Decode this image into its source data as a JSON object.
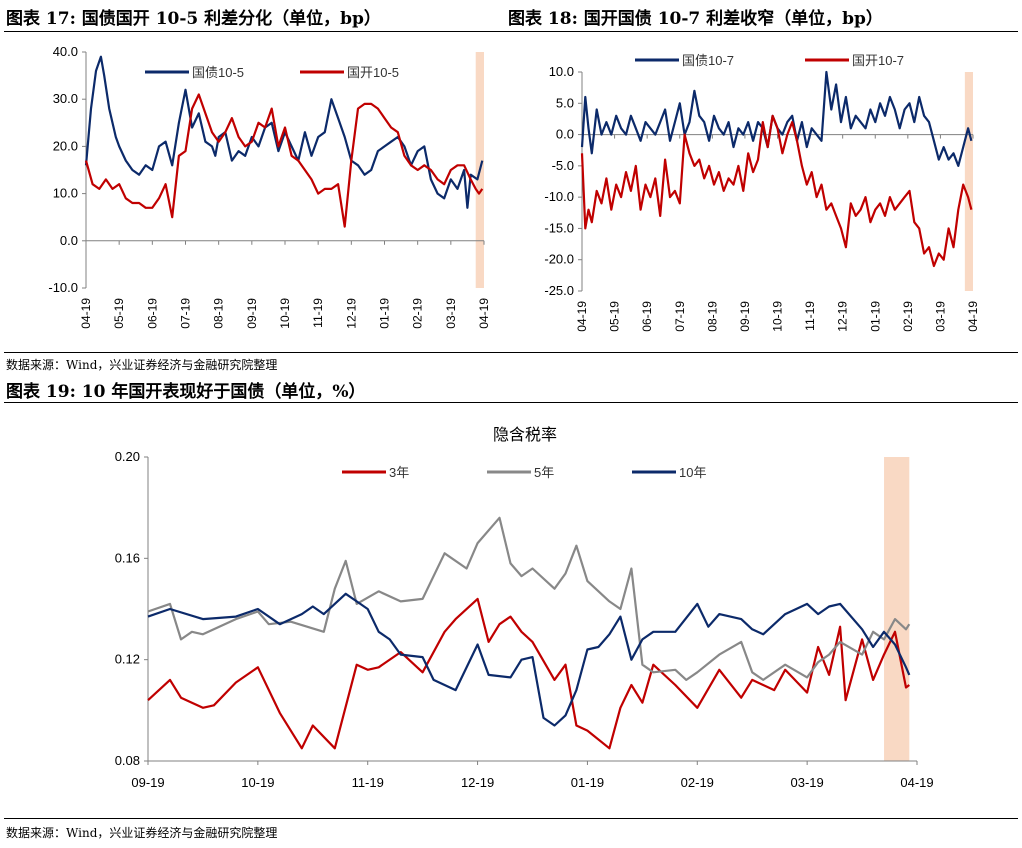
{
  "header_left": "图表 17:  国债国开 10-5 利差分化（单位，bp）",
  "header_right": "图表 18:  国开国债 10-7 利差收窄（单位，bp）",
  "header_bottom": "图表 19:  10 年国开表现好于国债（单位，%）",
  "source_top": "数据来源：Wind，兴业证券经济与金融研究院整理",
  "source_bottom": "数据来源：Wind，兴业证券经济与金融研究院整理",
  "colors": {
    "navy": "#0c2a6a",
    "red": "#c00000",
    "gray": "#888888",
    "highlight": "#f9d9c4"
  },
  "chart_data": [
    {
      "type": "line",
      "title": "",
      "xticks": [
        "04-19",
        "05-19",
        "06-19",
        "07-19",
        "08-19",
        "09-19",
        "10-19",
        "11-19",
        "12-19",
        "01-19",
        "02-19",
        "03-19",
        "04-19"
      ],
      "ylim": [
        -10,
        40
      ],
      "yticks": [
        "-10.0",
        "0.0",
        "10.0",
        "20.0",
        "30.0",
        "40.0"
      ],
      "yticks_values": [
        -10,
        0,
        10,
        20,
        30,
        40
      ],
      "legend": "top",
      "highlight_range": [
        11.75,
        12.0
      ],
      "series": [
        {
          "name": "国债10-5",
          "color": "#0c2a6a",
          "x": [
            0,
            0.15,
            0.3,
            0.45,
            0.55,
            0.7,
            0.9,
            1.0,
            1.2,
            1.4,
            1.6,
            1.8,
            2.0,
            2.2,
            2.4,
            2.6,
            2.8,
            3.0,
            3.2,
            3.4,
            3.6,
            3.8,
            3.9,
            4.0,
            4.2,
            4.4,
            4.6,
            4.8,
            5.0,
            5.2,
            5.4,
            5.6,
            5.8,
            6.0,
            6.2,
            6.4,
            6.6,
            6.8,
            7.0,
            7.2,
            7.4,
            7.6,
            7.8,
            8.0,
            8.2,
            8.4,
            8.6,
            8.8,
            9.0,
            9.2,
            9.4,
            9.6,
            9.8,
            10.0,
            10.2,
            10.4,
            10.6,
            10.8,
            11.0,
            11.2,
            11.4,
            11.5,
            11.6,
            11.8,
            11.95
          ],
          "y": [
            16,
            28,
            36,
            39,
            35,
            28,
            22,
            20,
            17,
            15,
            14,
            16,
            15,
            20,
            21,
            16,
            25,
            32,
            24,
            27,
            21,
            20,
            18,
            22,
            23,
            17,
            19,
            18,
            22,
            20,
            24,
            25,
            19,
            23,
            20,
            17,
            23,
            18,
            22,
            23,
            30,
            26,
            22,
            17,
            16,
            14,
            15,
            19,
            20,
            21,
            22,
            20,
            16,
            19,
            20,
            13,
            10,
            9,
            13,
            11,
            15,
            7,
            14,
            13,
            17
          ]
        },
        {
          "name": "国开10-5",
          "color": "#c00000",
          "x": [
            0,
            0.2,
            0.4,
            0.6,
            0.8,
            1.0,
            1.2,
            1.4,
            1.6,
            1.8,
            2.0,
            2.2,
            2.4,
            2.6,
            2.8,
            3.0,
            3.2,
            3.4,
            3.6,
            3.8,
            4.0,
            4.2,
            4.4,
            4.6,
            4.8,
            5.0,
            5.2,
            5.4,
            5.6,
            5.8,
            6.0,
            6.2,
            6.4,
            6.6,
            6.8,
            7.0,
            7.2,
            7.4,
            7.6,
            7.8,
            8.0,
            8.2,
            8.4,
            8.6,
            8.8,
            9.0,
            9.2,
            9.4,
            9.6,
            9.8,
            10.0,
            10.2,
            10.4,
            10.6,
            10.8,
            11.0,
            11.2,
            11.4,
            11.6,
            11.75,
            11.85,
            11.95
          ],
          "y": [
            17,
            12,
            11,
            13,
            11,
            12,
            9,
            8,
            8,
            7,
            7,
            9,
            12,
            5,
            18,
            19,
            28,
            31,
            27,
            23,
            21,
            23,
            26,
            22,
            20,
            21,
            25,
            24,
            28,
            20,
            24,
            18,
            17,
            15,
            13,
            10,
            11,
            11,
            12,
            3,
            17,
            28,
            29,
            29,
            28,
            26,
            24,
            23,
            18,
            16,
            15,
            16,
            15,
            13,
            12,
            15,
            16,
            16,
            13,
            11,
            10,
            11
          ]
        }
      ]
    },
    {
      "type": "line",
      "title": "",
      "xticks": [
        "04-19",
        "05-19",
        "06-19",
        "07-19",
        "08-19",
        "09-19",
        "10-19",
        "11-19",
        "12-19",
        "01-19",
        "02-19",
        "03-19",
        "04-19"
      ],
      "ylim": [
        -25,
        10
      ],
      "yticks": [
        "-25.0",
        "-20.0",
        "-15.0",
        "-10.0",
        "-5.0",
        "0.0",
        "5.0",
        "10.0"
      ],
      "yticks_values": [
        -25,
        -20,
        -15,
        -10,
        -5,
        0,
        5,
        10
      ],
      "legend": "top",
      "highlight_range": [
        11.75,
        12.0
      ],
      "series": [
        {
          "name": "国债10-7",
          "color": "#0c2a6a",
          "x": [
            0,
            0.1,
            0.2,
            0.3,
            0.45,
            0.6,
            0.75,
            0.9,
            1.05,
            1.2,
            1.35,
            1.5,
            1.65,
            1.8,
            1.95,
            2.1,
            2.25,
            2.4,
            2.55,
            2.7,
            2.85,
            3.0,
            3.15,
            3.3,
            3.45,
            3.6,
            3.75,
            3.9,
            4.05,
            4.2,
            4.35,
            4.5,
            4.65,
            4.8,
            4.95,
            5.1,
            5.25,
            5.4,
            5.55,
            5.7,
            5.85,
            6.0,
            6.15,
            6.3,
            6.45,
            6.6,
            6.75,
            6.9,
            7.05,
            7.2,
            7.35,
            7.5,
            7.65,
            7.8,
            7.95,
            8.1,
            8.25,
            8.4,
            8.55,
            8.7,
            8.85,
            9.0,
            9.15,
            9.3,
            9.45,
            9.6,
            9.75,
            9.9,
            10.05,
            10.2,
            10.35,
            10.5,
            10.65,
            10.8,
            10.95,
            11.1,
            11.25,
            11.4,
            11.55,
            11.7,
            11.85,
            11.95
          ],
          "y": [
            -2,
            6,
            1,
            -3,
            4,
            0,
            2,
            0,
            3,
            1,
            0,
            3,
            1,
            -1,
            2,
            1,
            0,
            2,
            4,
            -1,
            2,
            5,
            0,
            2,
            7,
            3,
            2,
            -1,
            3,
            1,
            0,
            2,
            -2,
            1,
            0,
            2,
            -1,
            2,
            1,
            -2,
            3,
            1,
            0,
            2,
            3,
            -1,
            2,
            -2,
            1,
            0,
            -1,
            10,
            4,
            8,
            2,
            6,
            1,
            3,
            2,
            1,
            4,
            2,
            5,
            3,
            6,
            4,
            1,
            4,
            5,
            2,
            6,
            3,
            2,
            -1,
            -4,
            -2,
            -4,
            -3,
            -5,
            -2,
            1,
            -1
          ]
        },
        {
          "name": "国开10-7",
          "color": "#c00000",
          "x": [
            0,
            0.1,
            0.2,
            0.3,
            0.45,
            0.6,
            0.75,
            0.9,
            1.05,
            1.2,
            1.35,
            1.5,
            1.65,
            1.8,
            1.95,
            2.1,
            2.25,
            2.4,
            2.55,
            2.7,
            2.85,
            3.0,
            3.15,
            3.3,
            3.45,
            3.6,
            3.75,
            3.9,
            4.05,
            4.2,
            4.35,
            4.5,
            4.65,
            4.8,
            4.95,
            5.1,
            5.25,
            5.4,
            5.55,
            5.7,
            5.85,
            6.0,
            6.15,
            6.3,
            6.45,
            6.6,
            6.75,
            6.9,
            7.05,
            7.2,
            7.35,
            7.5,
            7.65,
            7.8,
            7.95,
            8.1,
            8.25,
            8.4,
            8.55,
            8.7,
            8.85,
            9.0,
            9.15,
            9.3,
            9.45,
            9.6,
            9.75,
            9.9,
            10.05,
            10.2,
            10.35,
            10.5,
            10.65,
            10.8,
            10.95,
            11.1,
            11.25,
            11.4,
            11.55,
            11.7,
            11.85,
            11.95
          ],
          "y": [
            -3,
            -15,
            -12,
            -14,
            -9,
            -11,
            -7,
            -12,
            -8,
            -10,
            -6,
            -9,
            -5,
            -12,
            -8,
            -10,
            -7,
            -13,
            -4,
            -10,
            -9,
            -11,
            0,
            -3,
            -5,
            -4,
            -7,
            -5,
            -8,
            -6,
            -9,
            -7,
            -8,
            -5,
            -9,
            -3,
            -6,
            -4,
            2,
            -2,
            3,
            1,
            -3,
            0,
            2,
            -1,
            -5,
            -8,
            -6,
            -10,
            -8,
            -12,
            -11,
            -13,
            -15,
            -18,
            -11,
            -13,
            -12,
            -10,
            -14,
            -12,
            -11,
            -13,
            -10,
            -12,
            -11,
            -10,
            -9,
            -14,
            -15,
            -19,
            -18,
            -21,
            -19,
            -20,
            -15,
            -18,
            -12,
            -8,
            -10,
            -12
          ]
        }
      ]
    },
    {
      "type": "line",
      "title": "隐含税率",
      "xticks": [
        "09-19",
        "10-19",
        "11-19",
        "12-19",
        "01-19",
        "02-19",
        "03-19",
        "04-19"
      ],
      "ylim": [
        0.08,
        0.2
      ],
      "yticks": [
        "0.08",
        "0.12",
        "0.16",
        "0.20"
      ],
      "yticks_values": [
        0.08,
        0.12,
        0.16,
        0.2
      ],
      "legend": "top",
      "highlight_range": [
        6.7,
        6.93
      ],
      "series": [
        {
          "name": "3年",
          "color": "#c00000",
          "x": [
            0,
            0.1,
            0.2,
            0.3,
            0.4,
            0.5,
            0.6,
            0.8,
            1.0,
            1.2,
            1.4,
            1.5,
            1.7,
            1.9,
            2.0,
            2.1,
            2.3,
            2.5,
            2.7,
            2.8,
            3.0,
            3.1,
            3.2,
            3.3,
            3.4,
            3.5,
            3.7,
            3.8,
            3.9,
            4.0,
            4.2,
            4.3,
            4.4,
            4.5,
            4.6,
            4.8,
            5.0,
            5.2,
            5.4,
            5.5,
            5.7,
            5.8,
            6.0,
            6.1,
            6.2,
            6.3,
            6.35,
            6.5,
            6.6,
            6.7,
            6.8,
            6.9,
            6.93
          ],
          "y": [
            0.104,
            0.108,
            0.112,
            0.105,
            0.103,
            0.101,
            0.102,
            0.111,
            0.117,
            0.099,
            0.085,
            0.094,
            0.085,
            0.118,
            0.116,
            0.117,
            0.123,
            0.115,
            0.131,
            0.136,
            0.144,
            0.127,
            0.134,
            0.137,
            0.131,
            0.127,
            0.112,
            0.118,
            0.094,
            0.092,
            0.085,
            0.101,
            0.11,
            0.103,
            0.118,
            0.11,
            0.101,
            0.116,
            0.105,
            0.112,
            0.108,
            0.116,
            0.107,
            0.125,
            0.114,
            0.133,
            0.104,
            0.128,
            0.112,
            0.122,
            0.131,
            0.109,
            0.11
          ]
        },
        {
          "name": "5年",
          "color": "#888888",
          "x": [
            0,
            0.2,
            0.3,
            0.4,
            0.5,
            0.8,
            1.0,
            1.1,
            1.3,
            1.6,
            1.7,
            1.8,
            1.9,
            2.1,
            2.3,
            2.5,
            2.7,
            2.9,
            3.0,
            3.2,
            3.3,
            3.4,
            3.5,
            3.7,
            3.8,
            3.9,
            4.0,
            4.2,
            4.3,
            4.4,
            4.5,
            4.6,
            4.8,
            4.9,
            5.0,
            5.2,
            5.4,
            5.5,
            5.6,
            5.8,
            6.0,
            6.1,
            6.2,
            6.3,
            6.5,
            6.6,
            6.7,
            6.8,
            6.9,
            6.93
          ],
          "y": [
            0.139,
            0.142,
            0.128,
            0.131,
            0.13,
            0.136,
            0.139,
            0.134,
            0.135,
            0.131,
            0.148,
            0.159,
            0.142,
            0.147,
            0.143,
            0.144,
            0.162,
            0.156,
            0.166,
            0.176,
            0.158,
            0.153,
            0.156,
            0.148,
            0.154,
            0.165,
            0.151,
            0.143,
            0.14,
            0.156,
            0.118,
            0.115,
            0.116,
            0.112,
            0.115,
            0.122,
            0.127,
            0.115,
            0.112,
            0.118,
            0.113,
            0.119,
            0.122,
            0.127,
            0.122,
            0.131,
            0.128,
            0.136,
            0.132,
            0.134
          ]
        },
        {
          "name": "10年",
          "color": "#0c2a6a",
          "x": [
            0,
            0.2,
            0.5,
            0.8,
            1.0,
            1.2,
            1.4,
            1.5,
            1.6,
            1.8,
            1.9,
            2.0,
            2.1,
            2.2,
            2.3,
            2.5,
            2.6,
            2.8,
            3.0,
            3.1,
            3.3,
            3.4,
            3.5,
            3.6,
            3.7,
            3.8,
            3.9,
            4.0,
            4.1,
            4.2,
            4.3,
            4.4,
            4.5,
            4.6,
            4.8,
            5.0,
            5.1,
            5.2,
            5.4,
            5.5,
            5.6,
            5.8,
            5.9,
            6.0,
            6.1,
            6.2,
            6.3,
            6.5,
            6.6,
            6.7,
            6.8,
            6.9,
            6.93
          ],
          "y": [
            0.137,
            0.14,
            0.136,
            0.137,
            0.14,
            0.134,
            0.138,
            0.141,
            0.138,
            0.146,
            0.143,
            0.14,
            0.131,
            0.128,
            0.122,
            0.121,
            0.112,
            0.108,
            0.126,
            0.114,
            0.113,
            0.12,
            0.121,
            0.097,
            0.094,
            0.098,
            0.108,
            0.124,
            0.125,
            0.13,
            0.137,
            0.12,
            0.128,
            0.131,
            0.131,
            0.142,
            0.133,
            0.138,
            0.136,
            0.132,
            0.13,
            0.138,
            0.14,
            0.142,
            0.138,
            0.141,
            0.142,
            0.132,
            0.125,
            0.131,
            0.126,
            0.117,
            0.114
          ]
        }
      ]
    }
  ]
}
